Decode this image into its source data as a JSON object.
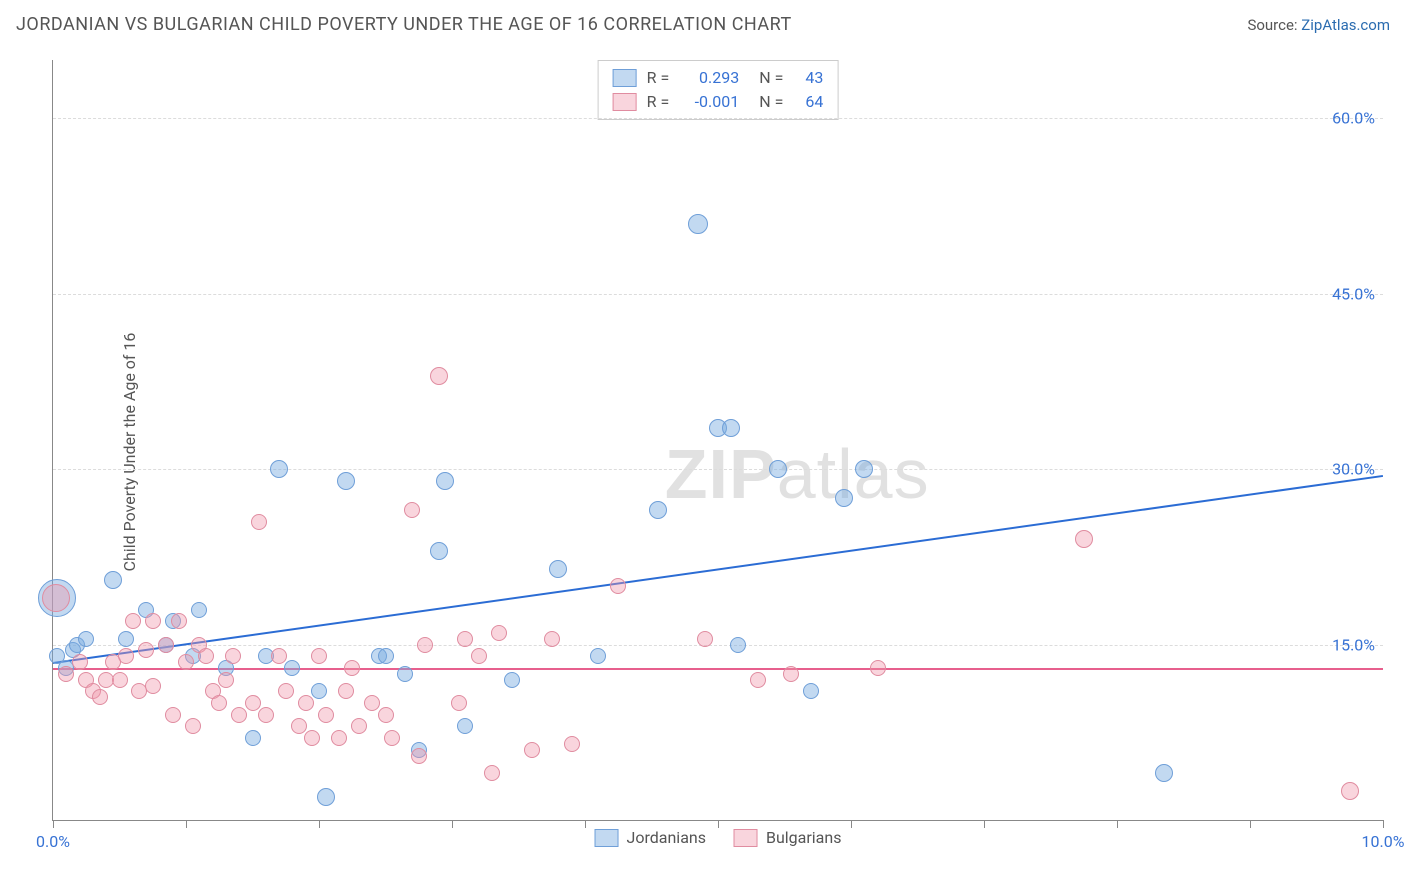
{
  "header": {
    "title": "JORDANIAN VS BULGARIAN CHILD POVERTY UNDER THE AGE OF 16 CORRELATION CHART",
    "source_prefix": "Source: ",
    "source_link": "ZipAtlas.com"
  },
  "chart": {
    "type": "scatter",
    "ylabel": "Child Poverty Under the Age of 16",
    "xlim": [
      0,
      10
    ],
    "ylim": [
      0,
      65
    ],
    "x_ticks": [
      0,
      1,
      2,
      3,
      4,
      5,
      6,
      7,
      8,
      9,
      10
    ],
    "x_tick_labels": {
      "0": "0.0%",
      "10": "10.0%"
    },
    "y_gridlines": [
      15,
      30,
      45,
      60
    ],
    "y_tick_labels": {
      "15": "15.0%",
      "30": "30.0%",
      "45": "45.0%",
      "60": "60.0%"
    },
    "background_color": "#ffffff",
    "grid_color": "#dcdcdc",
    "axis_color": "#888888",
    "label_color": "#555555",
    "tick_label_color": "#3772d4",
    "series": [
      {
        "name": "Jordanians",
        "fill": "rgba(120,170,225,0.45)",
        "stroke": "#6f9fd8",
        "line_color": "#2b6cd4",
        "r_value": "0.293",
        "n_value": "43",
        "trend": {
          "x1": 0,
          "y1": 13.5,
          "x2": 10,
          "y2": 29.5
        },
        "points": [
          {
            "x": 0.03,
            "y": 19,
            "r": 18
          },
          {
            "x": 0.03,
            "y": 14,
            "r": 7
          },
          {
            "x": 0.1,
            "y": 13,
            "r": 7
          },
          {
            "x": 0.15,
            "y": 14.5,
            "r": 7
          },
          {
            "x": 0.18,
            "y": 15,
            "r": 7
          },
          {
            "x": 0.25,
            "y": 15.5,
            "r": 7
          },
          {
            "x": 0.45,
            "y": 20.5,
            "r": 8
          },
          {
            "x": 0.55,
            "y": 15.5,
            "r": 7
          },
          {
            "x": 0.7,
            "y": 18,
            "r": 7
          },
          {
            "x": 0.85,
            "y": 15,
            "r": 7
          },
          {
            "x": 0.9,
            "y": 17,
            "r": 7
          },
          {
            "x": 1.05,
            "y": 14,
            "r": 7
          },
          {
            "x": 1.1,
            "y": 18,
            "r": 7
          },
          {
            "x": 1.3,
            "y": 13,
            "r": 7
          },
          {
            "x": 1.5,
            "y": 7,
            "r": 7
          },
          {
            "x": 1.6,
            "y": 14,
            "r": 7
          },
          {
            "x": 1.7,
            "y": 30,
            "r": 8
          },
          {
            "x": 1.8,
            "y": 13,
            "r": 7
          },
          {
            "x": 2.0,
            "y": 11,
            "r": 7
          },
          {
            "x": 2.05,
            "y": 2,
            "r": 8
          },
          {
            "x": 2.2,
            "y": 29,
            "r": 8
          },
          {
            "x": 2.45,
            "y": 14,
            "r": 7
          },
          {
            "x": 2.5,
            "y": 14,
            "r": 7
          },
          {
            "x": 2.65,
            "y": 12.5,
            "r": 7
          },
          {
            "x": 2.75,
            "y": 6,
            "r": 7
          },
          {
            "x": 2.9,
            "y": 23,
            "r": 8
          },
          {
            "x": 2.95,
            "y": 29,
            "r": 8
          },
          {
            "x": 3.1,
            "y": 8,
            "r": 7
          },
          {
            "x": 3.45,
            "y": 12,
            "r": 7
          },
          {
            "x": 3.8,
            "y": 21.5,
            "r": 8
          },
          {
            "x": 4.1,
            "y": 14,
            "r": 7
          },
          {
            "x": 4.55,
            "y": 26.5,
            "r": 8
          },
          {
            "x": 4.85,
            "y": 51,
            "r": 9
          },
          {
            "x": 5.0,
            "y": 33.5,
            "r": 8
          },
          {
            "x": 5.1,
            "y": 33.5,
            "r": 8
          },
          {
            "x": 5.15,
            "y": 15,
            "r": 7
          },
          {
            "x": 5.45,
            "y": 30,
            "r": 8
          },
          {
            "x": 5.7,
            "y": 11,
            "r": 7
          },
          {
            "x": 5.95,
            "y": 27.5,
            "r": 8
          },
          {
            "x": 6.1,
            "y": 30,
            "r": 8
          },
          {
            "x": 8.35,
            "y": 4,
            "r": 8
          }
        ]
      },
      {
        "name": "Bulgarians",
        "fill": "rgba(240,150,170,0.40)",
        "stroke": "#e08ca0",
        "line_color": "#e75f8d",
        "r_value": "-0.001",
        "n_value": "64",
        "trend": {
          "x1": 0,
          "y1": 13.0,
          "x2": 10,
          "y2": 13.0
        },
        "points": [
          {
            "x": 0.02,
            "y": 19,
            "r": 13
          },
          {
            "x": 0.1,
            "y": 12.5,
            "r": 7
          },
          {
            "x": 0.2,
            "y": 13.5,
            "r": 7
          },
          {
            "x": 0.25,
            "y": 12,
            "r": 7
          },
          {
            "x": 0.3,
            "y": 11,
            "r": 7
          },
          {
            "x": 0.35,
            "y": 10.5,
            "r": 7
          },
          {
            "x": 0.4,
            "y": 12,
            "r": 7
          },
          {
            "x": 0.45,
            "y": 13.5,
            "r": 7
          },
          {
            "x": 0.5,
            "y": 12,
            "r": 7
          },
          {
            "x": 0.55,
            "y": 14,
            "r": 7
          },
          {
            "x": 0.6,
            "y": 17,
            "r": 7
          },
          {
            "x": 0.65,
            "y": 11,
            "r": 7
          },
          {
            "x": 0.7,
            "y": 14.5,
            "r": 7
          },
          {
            "x": 0.75,
            "y": 11.5,
            "r": 7
          },
          {
            "x": 0.75,
            "y": 17,
            "r": 7
          },
          {
            "x": 0.85,
            "y": 15,
            "r": 7
          },
          {
            "x": 0.9,
            "y": 9,
            "r": 7
          },
          {
            "x": 0.95,
            "y": 17,
            "r": 7
          },
          {
            "x": 1.0,
            "y": 13.5,
            "r": 7
          },
          {
            "x": 1.05,
            "y": 8,
            "r": 7
          },
          {
            "x": 1.1,
            "y": 15,
            "r": 7
          },
          {
            "x": 1.15,
            "y": 14,
            "r": 7
          },
          {
            "x": 1.2,
            "y": 11,
            "r": 7
          },
          {
            "x": 1.25,
            "y": 10,
            "r": 7
          },
          {
            "x": 1.3,
            "y": 12,
            "r": 7
          },
          {
            "x": 1.35,
            "y": 14,
            "r": 7
          },
          {
            "x": 1.4,
            "y": 9,
            "r": 7
          },
          {
            "x": 1.5,
            "y": 10,
            "r": 7
          },
          {
            "x": 1.55,
            "y": 25.5,
            "r": 7
          },
          {
            "x": 1.6,
            "y": 9,
            "r": 7
          },
          {
            "x": 1.7,
            "y": 14,
            "r": 7
          },
          {
            "x": 1.75,
            "y": 11,
            "r": 7
          },
          {
            "x": 1.85,
            "y": 8,
            "r": 7
          },
          {
            "x": 1.9,
            "y": 10,
            "r": 7
          },
          {
            "x": 1.95,
            "y": 7,
            "r": 7
          },
          {
            "x": 2.0,
            "y": 14,
            "r": 7
          },
          {
            "x": 2.05,
            "y": 9,
            "r": 7
          },
          {
            "x": 2.15,
            "y": 7,
            "r": 7
          },
          {
            "x": 2.2,
            "y": 11,
            "r": 7
          },
          {
            "x": 2.25,
            "y": 13,
            "r": 7
          },
          {
            "x": 2.3,
            "y": 8,
            "r": 7
          },
          {
            "x": 2.4,
            "y": 10,
            "r": 7
          },
          {
            "x": 2.5,
            "y": 9,
            "r": 7
          },
          {
            "x": 2.55,
            "y": 7,
            "r": 7
          },
          {
            "x": 2.7,
            "y": 26.5,
            "r": 7
          },
          {
            "x": 2.75,
            "y": 5.5,
            "r": 7
          },
          {
            "x": 2.8,
            "y": 15,
            "r": 7
          },
          {
            "x": 2.9,
            "y": 38,
            "r": 8
          },
          {
            "x": 3.05,
            "y": 10,
            "r": 7
          },
          {
            "x": 3.1,
            "y": 15.5,
            "r": 7
          },
          {
            "x": 3.2,
            "y": 14,
            "r": 7
          },
          {
            "x": 3.3,
            "y": 4,
            "r": 7
          },
          {
            "x": 3.35,
            "y": 16,
            "r": 7
          },
          {
            "x": 3.6,
            "y": 6,
            "r": 7
          },
          {
            "x": 3.75,
            "y": 15.5,
            "r": 7
          },
          {
            "x": 3.9,
            "y": 6.5,
            "r": 7
          },
          {
            "x": 4.25,
            "y": 20,
            "r": 7
          },
          {
            "x": 4.9,
            "y": 15.5,
            "r": 7
          },
          {
            "x": 5.3,
            "y": 12,
            "r": 7
          },
          {
            "x": 5.55,
            "y": 12.5,
            "r": 7
          },
          {
            "x": 6.2,
            "y": 13,
            "r": 7
          },
          {
            "x": 7.75,
            "y": 24,
            "r": 8
          },
          {
            "x": 9.75,
            "y": 2.5,
            "r": 8
          }
        ]
      }
    ],
    "legend_top": {
      "r_label": "R =",
      "n_label": "N ="
    },
    "watermark": {
      "zip": "ZIP",
      "atlas": "atlas"
    }
  }
}
